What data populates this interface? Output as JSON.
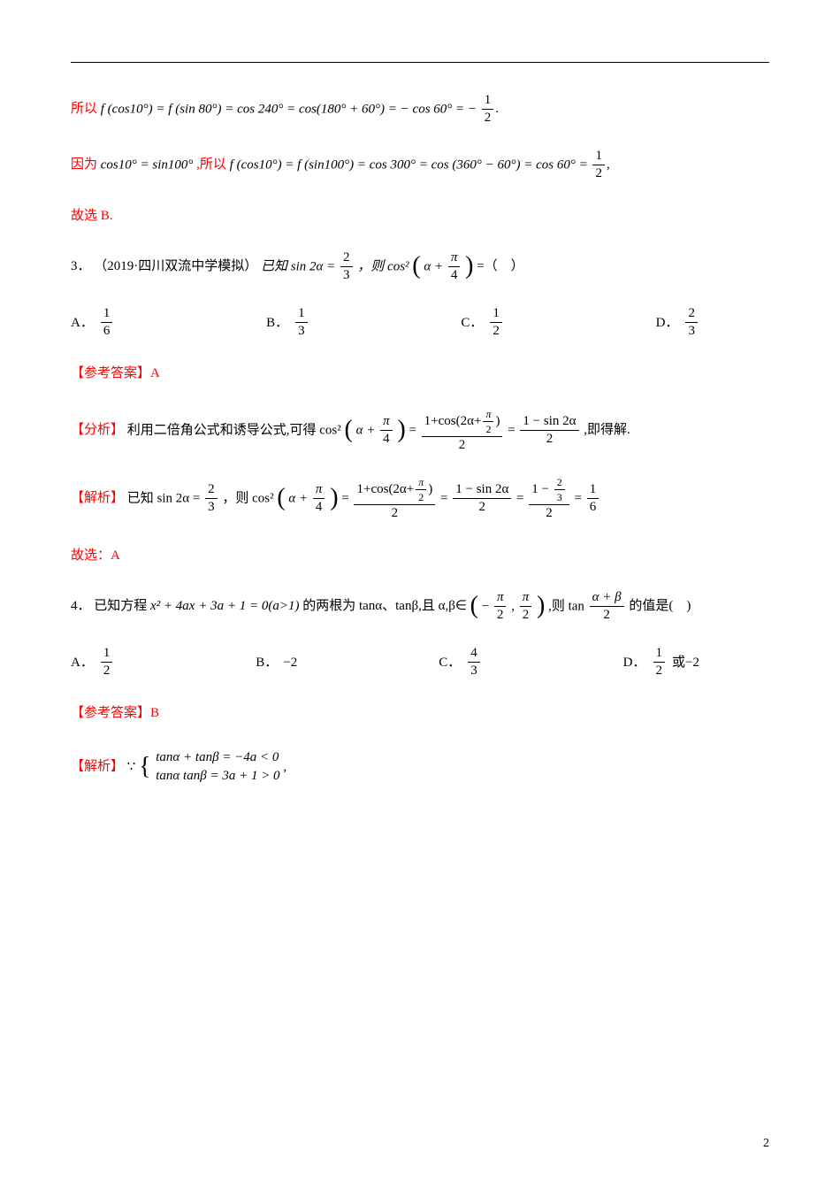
{
  "colors": {
    "text": "#000000",
    "accent_red": "#ff0000",
    "background": "#ffffff"
  },
  "page_number": "2",
  "line1": {
    "pre": "所以 ",
    "lhs": "f (cos10°) = f (sin 80°) = cos 240° = cos(180° + 60°) = − cos 60° = − ",
    "frac_num": "1",
    "frac_den": "2",
    "tail": "."
  },
  "line2a": {
    "pre": "因为 ",
    "t1": "cos10° = sin100°",
    "mid": ",所以",
    "t2": " f (cos10°) = f (sin100°) = cos 300° = ",
    "rhs1": "cos (360° − 60°) = cos 60° = ",
    "frac_num": "1",
    "frac_den": "2",
    "tail": ","
  },
  "select_b": "故选 B.",
  "q3": {
    "num": "3．",
    "src": "（2019·四川双流中学模拟）",
    "t1": "已知 sin 2α = ",
    "frac1_n": "2",
    "frac1_d": "3",
    "t2": "，则 cos²",
    "par_l": "(",
    "par_r": ")",
    "inner_pre": " α + ",
    "inner_n": "π",
    "inner_d": "4",
    "tail": " =（　）"
  },
  "opts3": {
    "A_pre": "A．",
    "A_n": "1",
    "A_d": "6",
    "B_pre": "B．",
    "B_n": "1",
    "B_d": "3",
    "C_pre": "C．",
    "C_n": "1",
    "C_d": "2",
    "D_pre": "D．",
    "D_n": "2",
    "D_d": "3"
  },
  "ans3_label": "【参考答案】",
  "ans3_val": "A",
  "analy3": {
    "label": "【分析】",
    "t1": "利用二倍角公式和诱导公式,可得 cos²",
    "inner_pre": " α + ",
    "inner_n": "π",
    "inner_d": "4",
    "eq": " = ",
    "big1_num_pre": "1+cos(2α+",
    "big1_num_n": "π",
    "big1_num_d": "2",
    "big1_num_post": ")",
    "big1_den": "2",
    "big2_num": "1 − sin 2α",
    "big2_den": "2",
    "tail": " ,即得解."
  },
  "sol3": {
    "label": "【解析】",
    "t1": "已知 sin 2α = ",
    "f1_n": "2",
    "f1_d": "3",
    "t2": "，则 cos²",
    "inner_pre": " α + ",
    "inner_n": "π",
    "inner_d": "4",
    "eq": " = ",
    "big1_num_pre": "1+cos(2α+",
    "big1_num_n": "π",
    "big1_num_d": "2",
    "big1_num_post": ")",
    "big1_den": "2",
    "big2_num": "1 − sin 2α",
    "big2_den": "2",
    "big3_num_pre": "1 − ",
    "big3_num_n": "2",
    "big3_num_d": "3",
    "big3_den": "2",
    "big4_n": "1",
    "big4_d": "6"
  },
  "select_a": "故选：A",
  "q4": {
    "num": "4．",
    "t1": "已知方程 ",
    "poly": "x² + 4ax + 3a + 1 = 0(a>1)",
    "t2": "的两根为 tanα、tanβ,且 α,β∈",
    "int_l": "(",
    "int_r": ")",
    "int_ln": "π",
    "int_ld": "2",
    "neg": " − ",
    "comma": " , ",
    "int_rn": "π",
    "int_rd": "2",
    "t3": " ,则 tan ",
    "last_n": "α + β",
    "last_d": "2",
    "tail": " 的值是(　)"
  },
  "opts4": {
    "A_pre": "A．",
    "A_n": "1",
    "A_d": "2",
    "B_pre": "B．",
    "B": "−2",
    "C_pre": "C．",
    "C_n": "4",
    "C_d": "3",
    "D_pre": "D．",
    "D_n": "1",
    "D_d": "2",
    "D_tail": " 或−2"
  },
  "ans4_label": "【参考答案】",
  "ans4_val": "B",
  "sol4": {
    "label": "【解析】",
    "sym": "∵",
    "case1": "tanα + tanβ = −4a < 0",
    "case2": "tanα tanβ = 3a + 1 > 0",
    "tail": " ,"
  }
}
